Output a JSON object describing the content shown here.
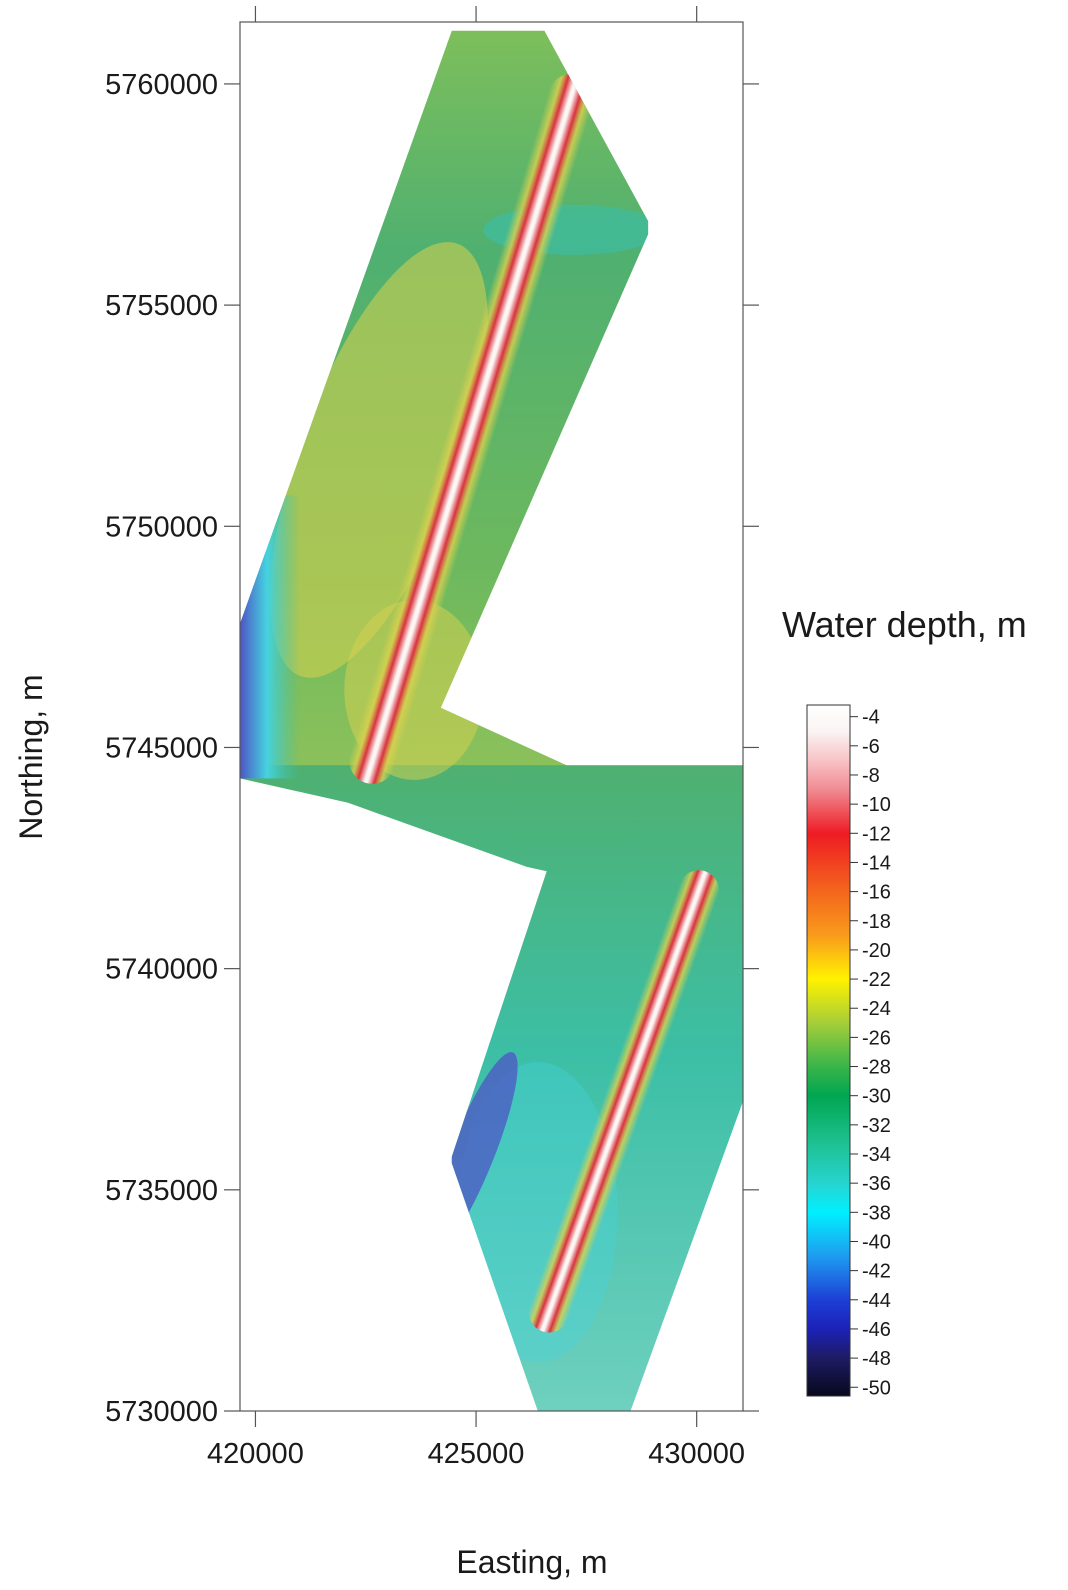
{
  "map": {
    "x_axis_title": "Easting, m",
    "y_axis_title": "Northing, m",
    "x_ticks": [
      420000,
      425000,
      430000
    ],
    "y_ticks": [
      5730000,
      5735000,
      5740000,
      5745000,
      5750000,
      5755000,
      5760000
    ],
    "x_range": [
      419650,
      431050
    ],
    "y_range": [
      5730000,
      5761400
    ]
  },
  "legend": {
    "title": "Water depth, m",
    "ticks": [
      -4,
      -6,
      -8,
      -10,
      -12,
      -14,
      -16,
      -18,
      -20,
      -22,
      -24,
      -26,
      -28,
      -30,
      -32,
      -34,
      -36,
      -38,
      -40,
      -42,
      -44,
      -46,
      -48,
      -50
    ],
    "range": [
      -3.2,
      -50.6
    ],
    "stops": [
      {
        "depth": -3.2,
        "color": "#ffffff"
      },
      {
        "depth": -5,
        "color": "#fbf4f4"
      },
      {
        "depth": -7,
        "color": "#f7c3c6"
      },
      {
        "depth": -9,
        "color": "#f08b92"
      },
      {
        "depth": -12,
        "color": "#ee1b24"
      },
      {
        "depth": -16,
        "color": "#f4661d"
      },
      {
        "depth": -19,
        "color": "#f99b1c"
      },
      {
        "depth": -22,
        "color": "#fff200"
      },
      {
        "depth": -25,
        "color": "#a6ce39"
      },
      {
        "depth": -28,
        "color": "#39b54a"
      },
      {
        "depth": -30,
        "color": "#00a651"
      },
      {
        "depth": -33,
        "color": "#1cbf8c"
      },
      {
        "depth": -36,
        "color": "#27d4cf"
      },
      {
        "depth": -38,
        "color": "#00f0ff"
      },
      {
        "depth": -41,
        "color": "#1e9cf0"
      },
      {
        "depth": -44,
        "color": "#1d3fd6"
      },
      {
        "depth": -46,
        "color": "#1c22b8"
      },
      {
        "depth": -48,
        "color": "#1e1b63"
      },
      {
        "depth": -50.6,
        "color": "#07081c"
      }
    ]
  },
  "colors": {
    "ridge_white": "#fbf6f4",
    "ridge_red": "#d8323e",
    "flank_yellow": "#d9d24f",
    "seafloor_green": "#4fb070",
    "seafloor_teal": "#3cbfa6",
    "deep_cyan": "#45d3e0",
    "deep_blue": "#4e54c6"
  }
}
